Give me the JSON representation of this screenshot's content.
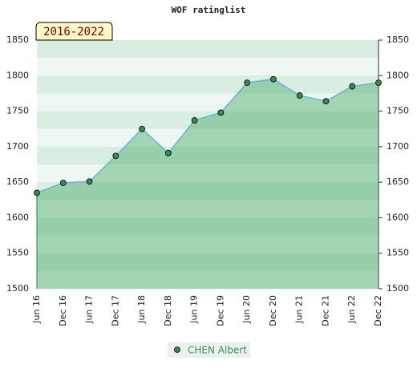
{
  "chart_data": {
    "type": "area",
    "title": "WOF ratinglist",
    "annotation": "2016-2022",
    "categories": [
      "Jun 16",
      "Dec 16",
      "Jun 17",
      "Dec 17",
      "Jun 18",
      "Dec 18",
      "Jun 19",
      "Dec 19",
      "Jun 20",
      "Dec 20",
      "Jun 21",
      "Dec 21",
      "Jun 22",
      "Dec 22"
    ],
    "series": [
      {
        "name": "CHEN Albert",
        "color": "#6ab0de",
        "values": [
          1635,
          1649,
          1651,
          1687,
          1725,
          1691,
          1737,
          1748,
          1790,
          1795,
          1772,
          1764,
          1785,
          1790
        ]
      }
    ],
    "ylim": [
      1500,
      1850
    ],
    "yticks": [
      1500,
      1550,
      1600,
      1650,
      1700,
      1750,
      1800,
      1850
    ]
  }
}
